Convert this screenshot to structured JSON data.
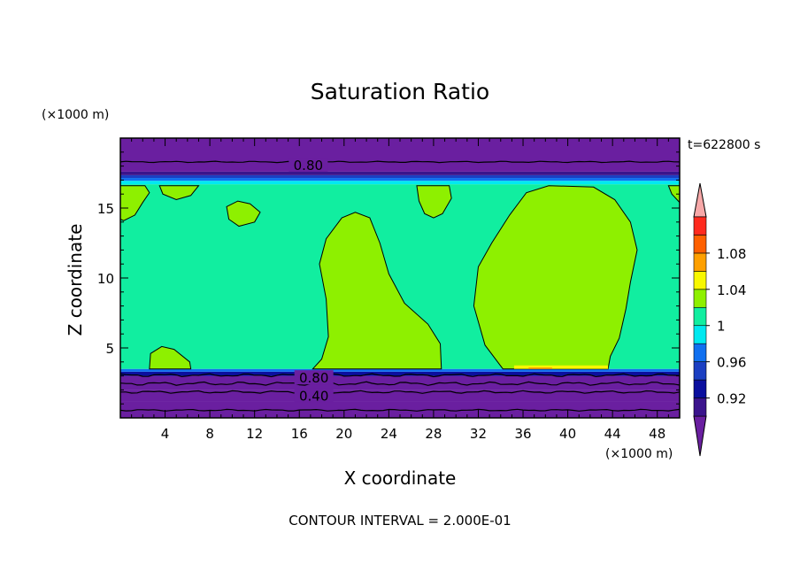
{
  "chart_data": {
    "type": "heatmap",
    "title": "Saturation Ratio",
    "time_label": "t=622800 s",
    "xlabel": "X coordinate",
    "ylabel": "Z coordinate",
    "x_unit": "(×1000 m)",
    "y_unit": "(×1000 m)",
    "xlim": [
      0,
      50
    ],
    "ylim": [
      0,
      20
    ],
    "x_ticks": [
      4,
      8,
      12,
      16,
      20,
      24,
      28,
      32,
      36,
      40,
      44,
      48
    ],
    "y_ticks": [
      5,
      10,
      15
    ],
    "footer": "CONTOUR INTERVAL = 2.000E-01",
    "contour_labels": [
      {
        "text": "0.80",
        "x": 16.8,
        "z": 18.1
      },
      {
        "text": "0.80",
        "x": 17.3,
        "z": 2.9
      },
      {
        "text": "0.40",
        "x": 17.3,
        "z": 1.6
      }
    ],
    "colorbar": {
      "levels": [
        {
          "upper": 0.9,
          "color": "#6a1fa0"
        },
        {
          "upper": 0.92,
          "color": "#3b148c"
        },
        {
          "upper": 0.94,
          "color": "#0b0f9e"
        },
        {
          "upper": 0.96,
          "color": "#1b3fc2"
        },
        {
          "upper": 0.98,
          "color": "#1070f0"
        },
        {
          "upper": 1.0,
          "color": "#00e9f0"
        },
        {
          "upper": 1.02,
          "color": "#11eea0"
        },
        {
          "upper": 1.04,
          "color": "#8ef000"
        },
        {
          "upper": 1.06,
          "color": "#f8f800"
        },
        {
          "upper": 1.08,
          "color": "#ffa000"
        },
        {
          "upper": 1.1,
          "color": "#ff6000"
        },
        {
          "upper": 1.12,
          "color": "#ff2a1e"
        },
        {
          "upper": null,
          "color": "#f7a8a8"
        }
      ],
      "labels": [
        "0.92",
        "0.96",
        "1",
        "1.04",
        "1.08"
      ]
    }
  }
}
